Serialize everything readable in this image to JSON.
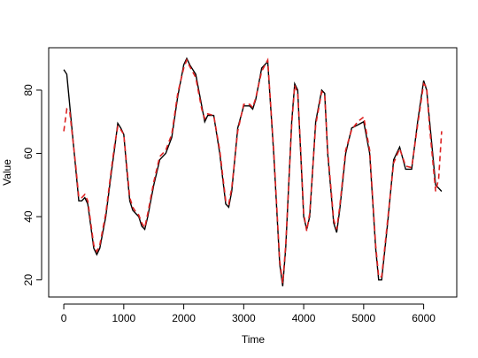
{
  "chart_data": {
    "type": "line",
    "xlabel": "Time",
    "ylabel": "Value",
    "x": [
      0,
      50,
      100,
      200,
      250,
      300,
      350,
      400,
      450,
      500,
      550,
      600,
      700,
      800,
      850,
      900,
      950,
      1000,
      1050,
      1100,
      1150,
      1200,
      1250,
      1300,
      1350,
      1400,
      1500,
      1600,
      1700,
      1800,
      1900,
      2000,
      2050,
      2100,
      2200,
      2300,
      2350,
      2400,
      2500,
      2600,
      2700,
      2750,
      2800,
      2900,
      3000,
      3100,
      3150,
      3200,
      3300,
      3400,
      3500,
      3600,
      3650,
      3700,
      3800,
      3850,
      3900,
      3950,
      4000,
      4050,
      4100,
      4200,
      4300,
      4350,
      4400,
      4500,
      4550,
      4600,
      4700,
      4800,
      4900,
      5000,
      5100,
      5200,
      5250,
      5300,
      5400,
      5500,
      5600,
      5700,
      5800,
      5900,
      6000,
      6050,
      6100,
      6200,
      6250,
      6300
    ],
    "series": [
      {
        "color": "#000000",
        "linestyle": "solid",
        "values": [
          86.5,
          85,
          75,
          55,
          45,
          45,
          46,
          44,
          37,
          30,
          28,
          30,
          40,
          55,
          62,
          69.5,
          68,
          66,
          55,
          45,
          42,
          41,
          40,
          37,
          36,
          40,
          50,
          58,
          60,
          65,
          78,
          88,
          90,
          88,
          85,
          75,
          70,
          72,
          72,
          60,
          44,
          43,
          48,
          68,
          75,
          75,
          74,
          77,
          87,
          89,
          60,
          25,
          18,
          30,
          70,
          82,
          80,
          60,
          40,
          36,
          40,
          70,
          80,
          79,
          60,
          38,
          35,
          42,
          60,
          68,
          69,
          70,
          60,
          30,
          20,
          20,
          38,
          58,
          62,
          55,
          55,
          70,
          83,
          80,
          70,
          50,
          49,
          48
        ]
      },
      {
        "color": "#dd2222",
        "linestyle": "dashed",
        "values": [
          67,
          74,
          73,
          56,
          46,
          46,
          47,
          45,
          38,
          31,
          29,
          31,
          41,
          56,
          63,
          68.5,
          67.5,
          66,
          56,
          46,
          43,
          41.5,
          40.5,
          38,
          36.5,
          41,
          51,
          59,
          61,
          66,
          79,
          87,
          89.5,
          87.5,
          84,
          74,
          71,
          72.5,
          72,
          61,
          45,
          44,
          49,
          67,
          75.5,
          75.5,
          74.5,
          77.5,
          86,
          89.5,
          61,
          26,
          19,
          31,
          69,
          81.5,
          79,
          61,
          41,
          35.5,
          41,
          69,
          79.5,
          78.5,
          61,
          39,
          36,
          43,
          61,
          67.5,
          70,
          71.5,
          61,
          31,
          21,
          21,
          39,
          57,
          61.5,
          56,
          55.5,
          69,
          82,
          81,
          68,
          48,
          52,
          67
        ]
      }
    ],
    "xlim": [
      -252,
      6552
    ],
    "xticks": [
      0,
      1000,
      2000,
      3000,
      4000,
      5000,
      6000
    ],
    "ylim": [
      14.6,
      93.4
    ],
    "yticks": [
      20,
      40,
      60,
      80
    ]
  }
}
